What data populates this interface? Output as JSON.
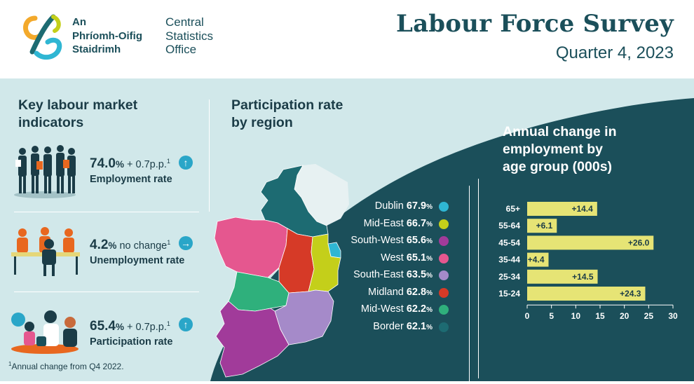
{
  "header": {
    "logo_ga": [
      "An",
      "Phríomh-Oifig",
      "Staidrimh"
    ],
    "logo_en": [
      "Central",
      "Statistics",
      "Office"
    ],
    "title": "Labour Force Survey",
    "subtitle": "Quarter 4, 2023"
  },
  "indicators": {
    "title": [
      "Key labour market",
      "indicators"
    ],
    "items": [
      {
        "big": "74.0",
        "pct": "%",
        "change": " + 0.7p.p.",
        "sup": "1",
        "label": "Employment rate",
        "arrow": "↑"
      },
      {
        "big": "4.2",
        "pct": "%",
        "change": " no change",
        "sup": "1",
        "label": "Unemployment rate",
        "arrow": "→"
      },
      {
        "big": "65.4",
        "pct": "%",
        "change": " + 0.7p.p.",
        "sup": "1",
        "label": "Participation rate",
        "arrow": "↑"
      }
    ],
    "footnote_sup": "1",
    "footnote": "Annual change from Q4 2022."
  },
  "regions": {
    "title": [
      "Participation rate",
      "by region"
    ],
    "items": [
      {
        "name": "Dublin",
        "value": "67.9",
        "unit": "%",
        "color": "#2fb6d3"
      },
      {
        "name": "Mid-East",
        "value": "66.7",
        "unit": "%",
        "color": "#c4cf1a"
      },
      {
        "name": "South-West",
        "value": "65.6",
        "unit": "%",
        "color": "#a13b9a"
      },
      {
        "name": "West",
        "value": "65.1",
        "unit": "%",
        "color": "#e5578f"
      },
      {
        "name": "South-East",
        "value": "63.5",
        "unit": "%",
        "color": "#a58ac9"
      },
      {
        "name": "Midland",
        "value": "62.8",
        "unit": "%",
        "color": "#d63a27"
      },
      {
        "name": "Mid-West",
        "value": "62.2",
        "unit": "%",
        "color": "#2fb07c"
      },
      {
        "name": "Border",
        "value": "62.1",
        "unit": "%",
        "color": "#1d6b72"
      }
    ]
  },
  "chart_data": {
    "type": "bar",
    "title": "Annual change in employment by age group (000s)",
    "title_lines": [
      "Annual change in",
      "employment by",
      "age group (000s)"
    ],
    "categories": [
      "65+",
      "55-64",
      "45-54",
      "35-44",
      "25-34",
      "15-24"
    ],
    "values": [
      14.4,
      6.1,
      26.0,
      4.4,
      14.5,
      24.3
    ],
    "labels": [
      "+14.4",
      "+6.1",
      "+26.0",
      "+4.4",
      "+14.5",
      "+24.3"
    ],
    "xlim": [
      0,
      30
    ],
    "xticks": [
      0,
      5,
      10,
      15,
      20,
      25,
      30
    ],
    "bar_color": "#e6e475"
  }
}
